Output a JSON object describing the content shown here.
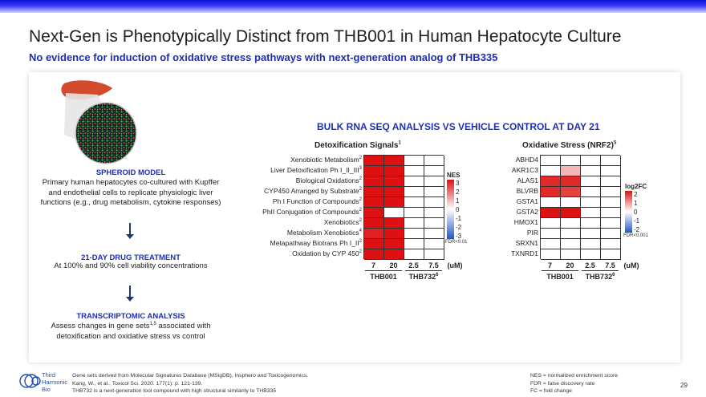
{
  "header": {
    "title": "Next-Gen is Phenotypically Distinct from THB001 in Human Hepatocyte Culture",
    "subtitle": "No evidence for induction of oxidative stress pathways with next-generation analog of THB335"
  },
  "left_column": {
    "spheroid_heading": "SPHEROID MODEL",
    "spheroid_text": "Primary human hepatocytes co-cultured with Kupffer and endothelial cells to replicate physiologic liver functions (e.g., drug metabolism, cytokine responses)",
    "treatment_heading": "21-DAY DRUG TREATMENT",
    "treatment_text": "At 100% and 90% cell viability concentrations",
    "transcriptomic_heading": "TRANSCRIPTOMIC ANALYSIS",
    "transcriptomic_text": "Assess changes in gene sets",
    "transcriptomic_sup": "1,5",
    "transcriptomic_text2": "associated with detoxification and oxidative stress vs control"
  },
  "analysis_title": "BULK RNA SEQ ANALYSIS VS VEHICLE CONTROL AT DAY 21",
  "detox": {
    "title": "Detoxification Signals",
    "title_sup": "1",
    "rows": [
      {
        "label": "Xenobiotic Metabolism",
        "sup": "2"
      },
      {
        "label": "Liver Detoxification Ph I_II_III",
        "sup": "3"
      },
      {
        "label": "Biological Oxidations",
        "sup": "2"
      },
      {
        "label": "CYP450 Arranged by Substrate",
        "sup": "2"
      },
      {
        "label": "Ph I Function of Compounds",
        "sup": "2"
      },
      {
        "label": "PhII Conjugation of Compounds",
        "sup": "2"
      },
      {
        "label": "Xenobiotics",
        "sup": "2"
      },
      {
        "label": "Metabolism Xenobiotics",
        "sup": "4"
      },
      {
        "label": "Metapathway Biotrans Ph I_II",
        "sup": "2"
      },
      {
        "label": "Oxidation by CYP 450",
        "sup": "2"
      }
    ],
    "columns": [
      "7",
      "20",
      "2.5",
      "7.5"
    ],
    "unit": "(uM)",
    "groups": [
      {
        "name": "THB001",
        "sup": ""
      },
      {
        "name": "THB732",
        "sup": "6"
      }
    ],
    "values": [
      [
        3.2,
        3.2,
        0,
        0
      ],
      [
        3.2,
        3.0,
        0,
        0
      ],
      [
        3.2,
        3.2,
        0,
        0
      ],
      [
        3.2,
        3.2,
        0,
        0
      ],
      [
        3.2,
        3.2,
        0,
        0
      ],
      [
        3.2,
        0,
        0,
        0
      ],
      [
        3.2,
        3.2,
        0,
        0
      ],
      [
        2.8,
        3.2,
        0,
        0
      ],
      [
        3.2,
        3.2,
        0,
        0
      ],
      [
        3.2,
        3.2,
        0,
        0
      ]
    ],
    "legend": {
      "title": "NES",
      "ticks": [
        "3",
        "2",
        "1",
        "0",
        "-1",
        "-2",
        "-3"
      ],
      "range": [
        -3,
        3
      ],
      "fdr": "FDR<0.01"
    }
  },
  "oxidative": {
    "title": "Oxidative Stress (NRF2)",
    "title_sup": "5",
    "rows": [
      {
        "label": "ABHD4",
        "sup": ""
      },
      {
        "label": "AKR1C3",
        "sup": ""
      },
      {
        "label": "ALAS1",
        "sup": ""
      },
      {
        "label": "BLVRB",
        "sup": ""
      },
      {
        "label": "GSTA1",
        "sup": ""
      },
      {
        "label": "GSTA2",
        "sup": ""
      },
      {
        "label": "HMOX1",
        "sup": ""
      },
      {
        "label": "PIR",
        "sup": ""
      },
      {
        "label": "SRXN1",
        "sup": ""
      },
      {
        "label": "TXNRD1",
        "sup": ""
      }
    ],
    "columns": [
      "7",
      "20",
      "2.5",
      "7.5"
    ],
    "unit": "(uM)",
    "groups": [
      {
        "name": "THB001",
        "sup": ""
      },
      {
        "name": "THB732",
        "sup": "6"
      }
    ],
    "values": [
      [
        0,
        0,
        0,
        0
      ],
      [
        0,
        0.6,
        0,
        0
      ],
      [
        1.8,
        1.8,
        0,
        0
      ],
      [
        1.8,
        1.6,
        0,
        0
      ],
      [
        0,
        0,
        0,
        0
      ],
      [
        2.4,
        2.4,
        0,
        0
      ],
      [
        0,
        0,
        0,
        0
      ],
      [
        0,
        0,
        0,
        0
      ],
      [
        0,
        0,
        0,
        0
      ],
      [
        0,
        0,
        0,
        0
      ]
    ],
    "legend": {
      "title": "log2FC",
      "ticks": [
        "2",
        "1",
        "0",
        "-1",
        "-2"
      ],
      "range": [
        -2,
        2
      ],
      "fdr": "FDR<0.001"
    }
  },
  "logo": {
    "line1": "Third",
    "line2": "Harmonic",
    "line3": "Bio"
  },
  "footnotes": {
    "line1": "Gene sets derived from Molecular Signatures Database (MSigDB), Insphero and Toxicogenomics.",
    "line2": "Kang, W., et al.. Toxicol Sci. 2020. 177(1): p. 121-139.",
    "line3": "THB732 is a next-generation tool compound with high structural similarity to THB335"
  },
  "abbreviations": {
    "nes": "NES = normalized enrichment score",
    "fdr": "FDR = false discovery rate",
    "fc": "FC = fold change"
  },
  "page_number": "29",
  "colors": {
    "accent": "#1f2fb5",
    "high": "#dd1111",
    "mid": "#ffffff",
    "low": "#2255cc"
  }
}
